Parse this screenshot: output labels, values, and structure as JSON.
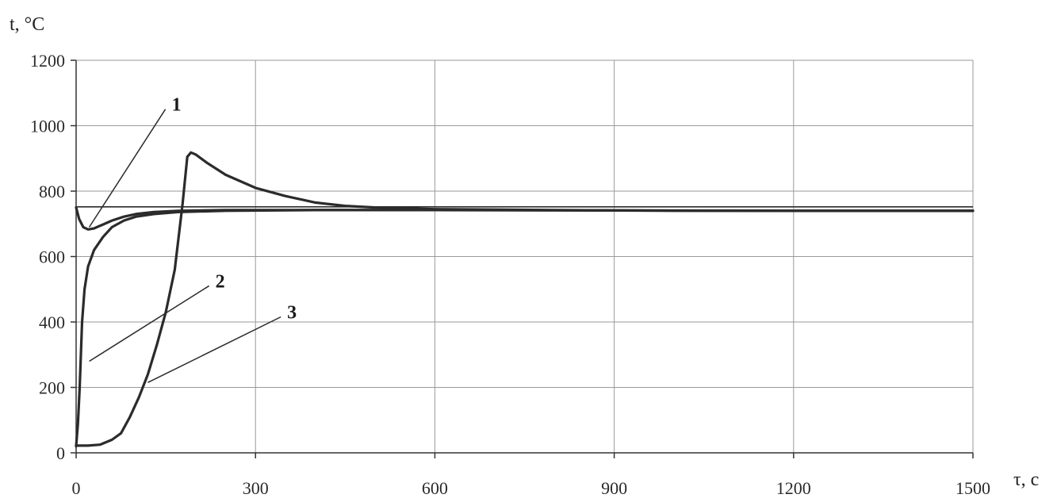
{
  "chart_data": {
    "type": "line",
    "title": "",
    "ylabel": "t, °C",
    "xlabel": "τ, c",
    "xlim": [
      0,
      1500
    ],
    "ylim": [
      0,
      1200
    ],
    "x_ticks": [
      0,
      300,
      600,
      900,
      1200,
      1500
    ],
    "y_ticks": [
      0,
      200,
      400,
      600,
      800,
      1000,
      1200
    ],
    "grid": true,
    "series": [
      {
        "name": "1",
        "points": [
          [
            0,
            750
          ],
          [
            5,
            715
          ],
          [
            12,
            690
          ],
          [
            20,
            683
          ],
          [
            30,
            686
          ],
          [
            45,
            698
          ],
          [
            60,
            710
          ],
          [
            80,
            722
          ],
          [
            100,
            730
          ],
          [
            130,
            736
          ],
          [
            170,
            740
          ],
          [
            250,
            742
          ],
          [
            400,
            742
          ],
          [
            600,
            742
          ],
          [
            900,
            741
          ],
          [
            1200,
            740
          ],
          [
            1500,
            740
          ]
        ]
      },
      {
        "name": "2",
        "points": [
          [
            0,
            20
          ],
          [
            3,
            90
          ],
          [
            6,
            200
          ],
          [
            10,
            400
          ],
          [
            14,
            500
          ],
          [
            20,
            570
          ],
          [
            30,
            620
          ],
          [
            45,
            660
          ],
          [
            60,
            690
          ],
          [
            80,
            710
          ],
          [
            100,
            722
          ],
          [
            130,
            730
          ],
          [
            170,
            736
          ],
          [
            250,
            740
          ],
          [
            400,
            742
          ],
          [
            600,
            742
          ],
          [
            900,
            741
          ],
          [
            1200,
            740
          ],
          [
            1500,
            740
          ]
        ]
      },
      {
        "name": "3",
        "points": [
          [
            0,
            22
          ],
          [
            20,
            22
          ],
          [
            40,
            25
          ],
          [
            60,
            40
          ],
          [
            75,
            60
          ],
          [
            90,
            110
          ],
          [
            105,
            170
          ],
          [
            120,
            240
          ],
          [
            135,
            330
          ],
          [
            150,
            430
          ],
          [
            165,
            560
          ],
          [
            178,
            760
          ],
          [
            186,
            905
          ],
          [
            192,
            918
          ],
          [
            200,
            912
          ],
          [
            220,
            885
          ],
          [
            250,
            850
          ],
          [
            300,
            810
          ],
          [
            350,
            785
          ],
          [
            400,
            765
          ],
          [
            450,
            755
          ],
          [
            500,
            750
          ],
          [
            600,
            745
          ],
          [
            800,
            742
          ],
          [
            1000,
            740
          ],
          [
            1200,
            740
          ],
          [
            1500,
            740
          ]
        ]
      }
    ],
    "reference_lines": [
      {
        "type": "horizontal",
        "y": 752
      }
    ],
    "curve_labels": [
      {
        "text": "1",
        "label_x": 160,
        "label_y": 1065,
        "target_x": 22,
        "target_y": 690
      },
      {
        "text": "2",
        "label_x": 233,
        "label_y": 525,
        "target_x": 22,
        "target_y": 280
      },
      {
        "text": "3",
        "label_x": 353,
        "label_y": 430,
        "target_x": 120,
        "target_y": 215
      }
    ]
  }
}
